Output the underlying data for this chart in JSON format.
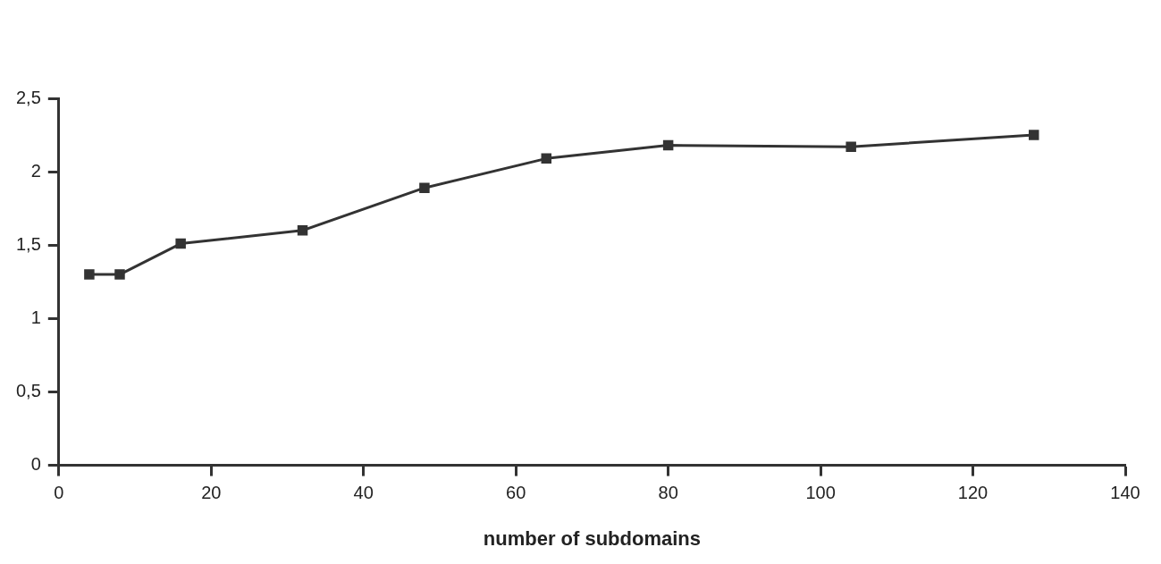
{
  "chart_data": {
    "type": "line",
    "xlabel": "number of subdomains",
    "x": [
      4,
      8,
      16,
      32,
      48,
      64,
      80,
      104,
      128
    ],
    "series": [
      {
        "color": "#333333",
        "values": [
          1.3,
          1.3,
          1.51,
          1.6,
          1.89,
          2.09,
          2.18,
          2.17,
          2.25
        ]
      }
    ],
    "xlim": [
      0,
      140
    ],
    "xticks": [
      0,
      20,
      40,
      60,
      80,
      100,
      120,
      140
    ],
    "ylim": [
      0,
      2.5
    ],
    "yticks": [
      0,
      {
        "value": 0.5,
        "label": "0,5"
      },
      1,
      {
        "value": 1.5,
        "label": "1,5"
      },
      2,
      {
        "value": 2.5,
        "label": "2,5"
      }
    ],
    "grid": false,
    "legend": false,
    "marker": "square",
    "line_style": "solid"
  }
}
